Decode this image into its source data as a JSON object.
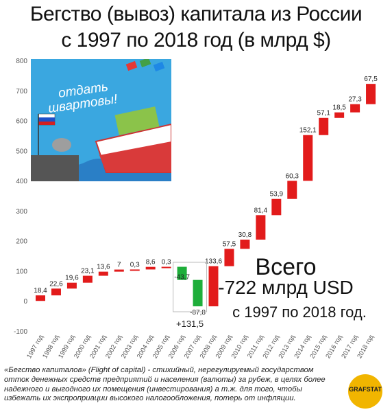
{
  "title_line1": "Бегство (вывоз) капитала из России",
  "title_line2": "с 1997 по 2018 год (в млрд $)",
  "illustration_text_line1": "отдать",
  "illustration_text_line2": "швартовы!",
  "total_line1": "Всего",
  "total_line2": "-722 млрд USD",
  "total_line3": "с 1997 по 2018 год.",
  "footnote": "«Бегство капиталов» (Flight of capital) - стихийный, нерегулируемый государством отток денежных средств предприятий и населения (валюты) за рубеж, в целях более надежного и выгодного их помещения (инвестирования) а т.ж. для того, чтобы избежать их экспроприации высокого налогообложения, потерь от инфляции.",
  "logo_text": "GRAFSTAT",
  "colors": {
    "outflow": "#e21b1b",
    "inflow": "#1eae3a",
    "axis_text": "#555555",
    "grid": "#cccccc"
  },
  "chart_data": {
    "type": "waterfall",
    "ylim": [
      -100,
      800
    ],
    "yticks": [
      -100,
      0,
      100,
      200,
      300,
      400,
      500,
      600,
      700,
      800
    ],
    "categories": [
      "1997 год",
      "1998 год",
      "1999 год",
      "2000 год",
      "2001 год",
      "2002 год",
      "2003 год",
      "2004 год",
      "2005 год",
      "2006 год",
      "2007 год",
      "2008 год",
      "2009 год",
      "2010 год",
      "2011 год",
      "2012 год",
      "2013 год",
      "2014 год",
      "2015 год",
      "2016 год",
      "2017 год",
      "2018 год"
    ],
    "values": [
      18.4,
      22.6,
      19.6,
      23.1,
      13.6,
      7,
      0.3,
      8.6,
      0.3,
      -43.7,
      -87.8,
      133.6,
      57.5,
      30.8,
      81.4,
      53.9,
      60.3,
      152.1,
      57.1,
      18.5,
      27.3,
      67.5
    ],
    "labels": [
      "18,4",
      "22,6",
      "19,6",
      "23,1",
      "13,6",
      "7",
      "0,3",
      "8,6",
      "0,3",
      "-43,7",
      "-87,8",
      "133,6",
      "57,5",
      "30,8",
      "81,4",
      "53,9",
      "60,3",
      "152,1",
      "57,1",
      "18,5",
      "27,3",
      "67,5"
    ],
    "group_annotation": {
      "label": "+131,5",
      "categories": [
        "2006 год",
        "2007 год"
      ]
    }
  }
}
